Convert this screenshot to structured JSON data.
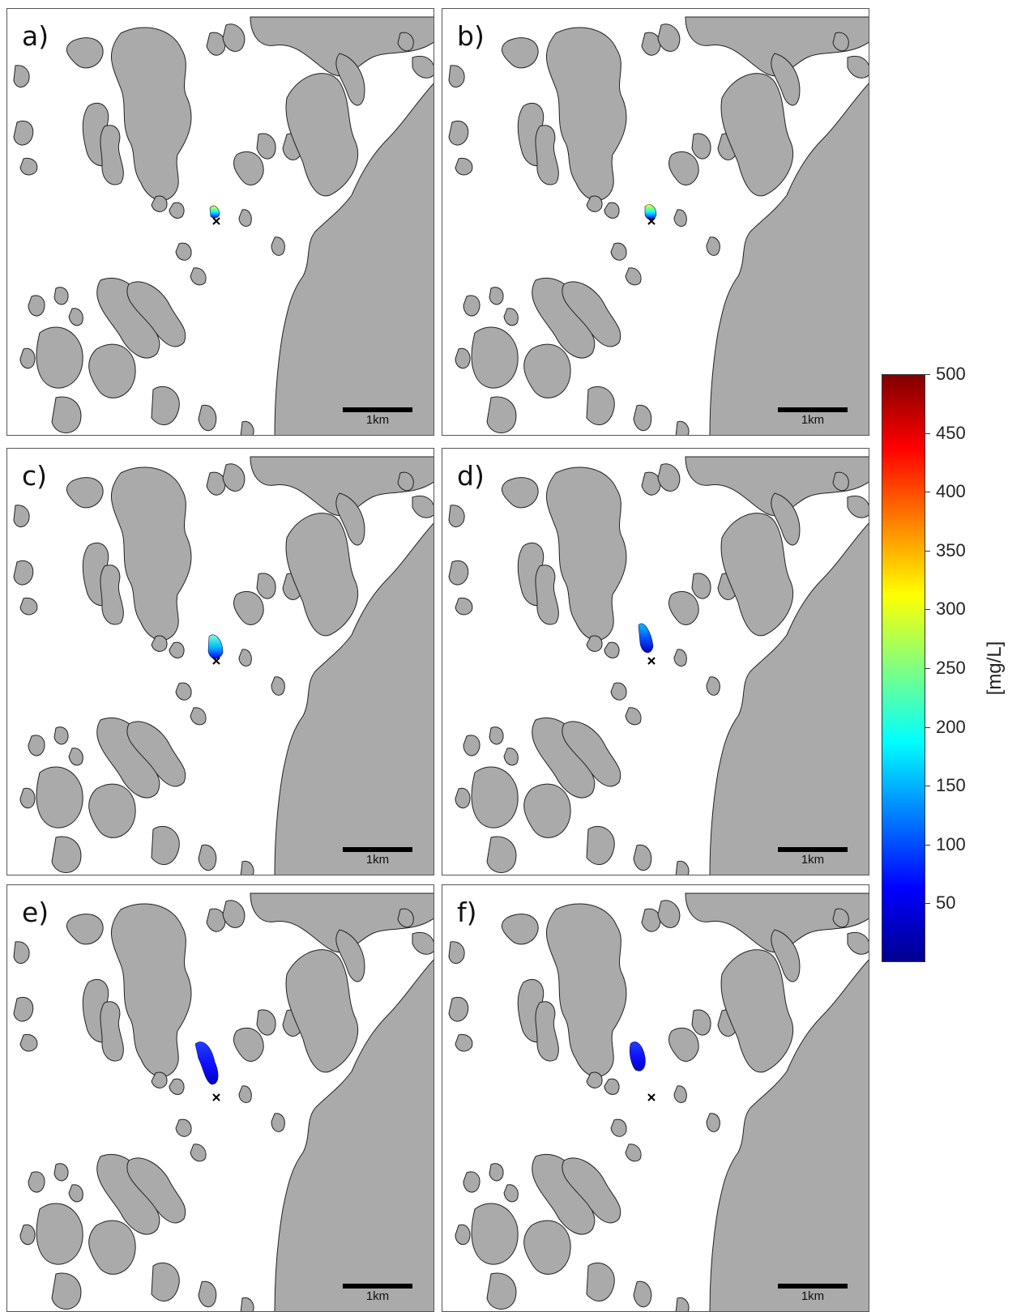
{
  "panels": [
    {
      "label": "a)",
      "scale": "1km",
      "plume": "a"
    },
    {
      "label": "b)",
      "scale": "1km",
      "plume": "b"
    },
    {
      "label": "c)",
      "scale": "1km",
      "plume": "c"
    },
    {
      "label": "d)",
      "scale": "1km",
      "plume": "d"
    },
    {
      "label": "e)",
      "scale": "1km",
      "plume": "e"
    },
    {
      "label": "f)",
      "scale": "1km",
      "plume": "f"
    }
  ],
  "colorbar": {
    "min": 0,
    "max": 500,
    "ticks": [
      "500",
      "450",
      "400",
      "350",
      "300",
      "250",
      "200",
      "150",
      "100",
      "50"
    ],
    "tick_values": [
      500,
      450,
      400,
      350,
      300,
      250,
      200,
      150,
      100,
      50
    ],
    "unit": "[mg/L]",
    "colormap": [
      "#00008f",
      "#0000ff",
      "#0080ff",
      "#00ffff",
      "#80ff80",
      "#ffff00",
      "#ff8000",
      "#ff0000",
      "#800000"
    ]
  },
  "colors": {
    "land": "#aaaaaa",
    "water": "#ffffff",
    "coast": "#222222"
  }
}
